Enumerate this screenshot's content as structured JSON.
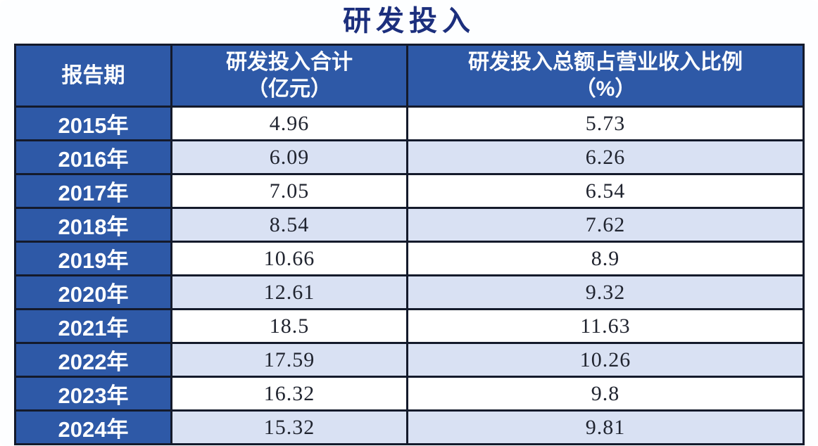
{
  "title": "研发投入",
  "colors": {
    "header_bg": "#2e59a7",
    "stripe_bg": "#d9e1f3",
    "border": "#141a2b",
    "title_text": "#1c2f7d",
    "header_text": "#ffffff",
    "value_text": "#20242f"
  },
  "table": {
    "columns": [
      {
        "line1": "报告期",
        "line2": ""
      },
      {
        "line1": "研发投入合计",
        "line2": "（亿元）"
      },
      {
        "line1": "研发投入总额占营业收入比例",
        "line2": "（%）"
      }
    ],
    "rows": [
      {
        "period": "2015年",
        "total": "4.96",
        "ratio": "5.73"
      },
      {
        "period": "2016年",
        "total": "6.09",
        "ratio": "6.26"
      },
      {
        "period": "2017年",
        "total": "7.05",
        "ratio": "6.54"
      },
      {
        "period": "2018年",
        "total": "8.54",
        "ratio": "7.62"
      },
      {
        "period": "2019年",
        "total": "10.66",
        "ratio": "8.9"
      },
      {
        "period": "2020年",
        "total": "12.61",
        "ratio": "9.32"
      },
      {
        "period": "2021年",
        "total": "18.5",
        "ratio": "11.63"
      },
      {
        "period": "2022年",
        "total": "17.59",
        "ratio": "10.26"
      },
      {
        "period": "2023年",
        "total": "16.32",
        "ratio": "9.8"
      },
      {
        "period": "2024年",
        "total": "15.32",
        "ratio": "9.81"
      }
    ]
  },
  "chart_data": {
    "type": "table",
    "title": "研发投入",
    "columns": [
      "报告期",
      "研发投入合计（亿元）",
      "研发投入总额占营业收入比例（%）"
    ],
    "rows": [
      [
        "2015年",
        4.96,
        5.73
      ],
      [
        "2016年",
        6.09,
        6.26
      ],
      [
        "2017年",
        7.05,
        6.54
      ],
      [
        "2018年",
        8.54,
        7.62
      ],
      [
        "2019年",
        10.66,
        8.9
      ],
      [
        "2020年",
        12.61,
        9.32
      ],
      [
        "2021年",
        18.5,
        11.63
      ],
      [
        "2022年",
        17.59,
        10.26
      ],
      [
        "2023年",
        16.32,
        9.8
      ],
      [
        "2024年",
        15.32,
        9.81
      ]
    ]
  }
}
